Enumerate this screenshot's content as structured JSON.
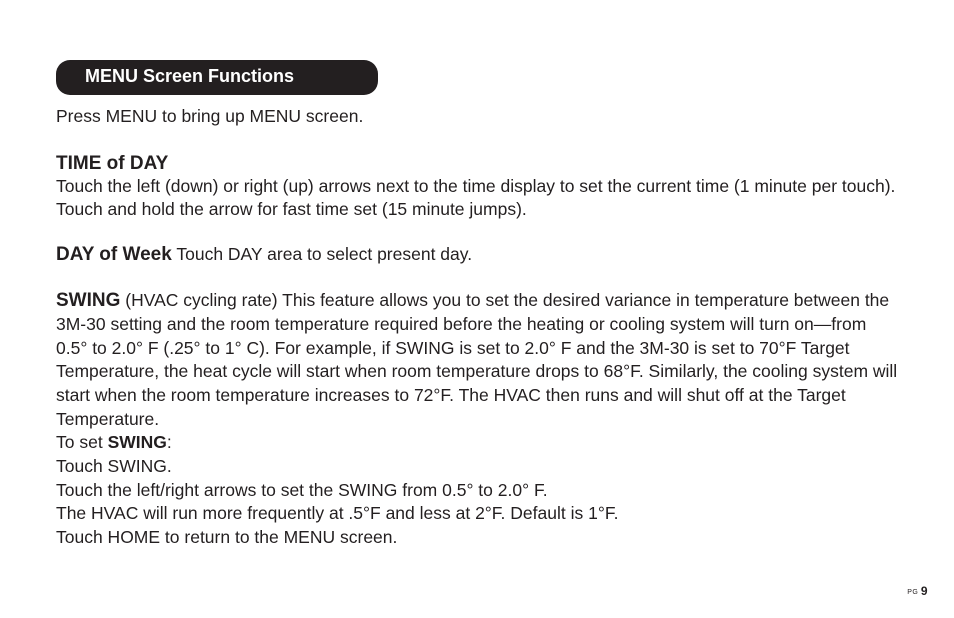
{
  "header": "MENU Screen Functions",
  "intro": "Press MENU to bring up MENU screen.",
  "timeOfDay": {
    "title": "TIME of DAY",
    "body": "Touch the left (down) or right (up) arrows next to the time display to set the current time (1 minute per touch). Touch and hold the arrow for fast time set (15 minute jumps)."
  },
  "dayOfWeek": {
    "title": "DAY of Week",
    "body": "  Touch DAY area to select present day."
  },
  "swing": {
    "title": "SWING",
    "body": "   (HVAC cycling rate)  This feature allows you to set the desired variance in temperature between the  3M-30 setting and the room temperature required before the heating or cooling system will turn on—from 0.5° to 2.0° F (.25° to 1° C). For example, if SWING is set to 2.0° F and the  3M-30 is set to 70°F Target Temperature, the heat cycle will start when room temperature drops to 68°F. Similarly, the cooling system will start when the room temperature increases to 72°F. The HVAC then runs and will shut off at the Target Temperature.",
    "toSetPrefix": "To set ",
    "toSetBold": "SWING",
    "toSetSuffix": ":",
    "line1": "Touch SWING.",
    "line2": "Touch the left/right arrows to set the SWING from 0.5° to 2.0° F.",
    "line3": "The HVAC will run more frequently at .5°F and less at 2°F.  Default is 1°F.",
    "line4": "Touch HOME to return to the MENU screen."
  },
  "pageLabel": "PG ",
  "pageNumber": "9"
}
